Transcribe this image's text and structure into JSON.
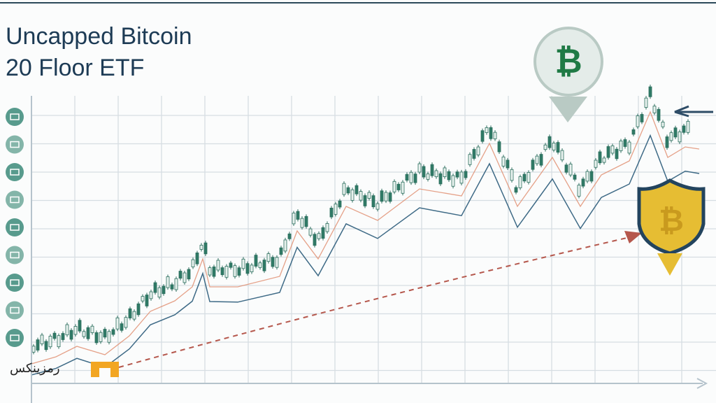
{
  "header": {
    "title_line1": "Uncapped Bitcoin",
    "title_line2": "20 Floor ETF"
  },
  "logo": {
    "text": "رمزینکس"
  }
}
